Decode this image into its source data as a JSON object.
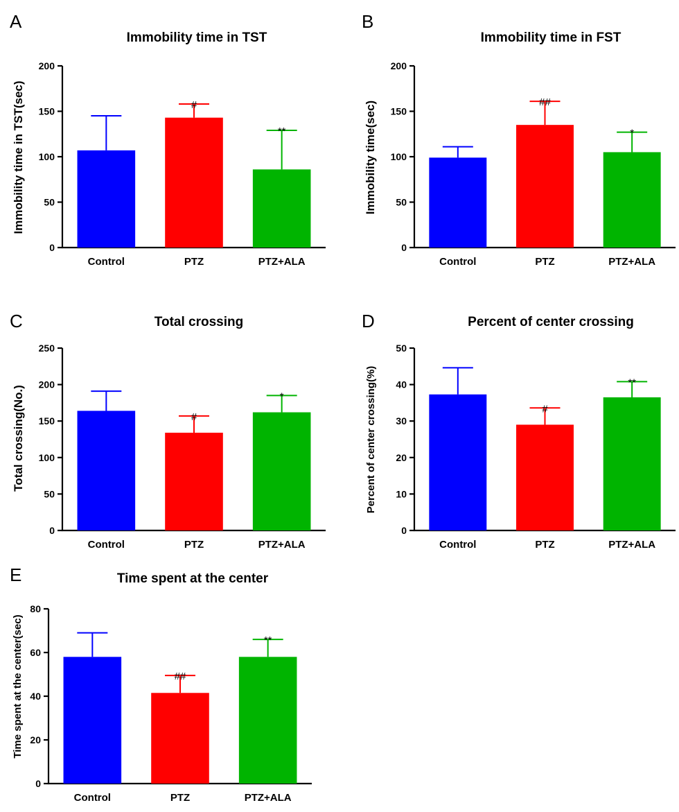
{
  "colors": {
    "Control": "#0000ff",
    "PTZ": "#ff0000",
    "PTZ+ALA": "#00b400"
  },
  "chart_data": [
    {
      "type": "bar",
      "panel": "A",
      "title": "Immobility time in TST",
      "xlabel": "",
      "ylabel": "Immobility time in TST(sec)",
      "ylim": [
        0,
        200
      ],
      "yticks": [
        0,
        50,
        100,
        150,
        200
      ],
      "categories": [
        "Control",
        "PTZ",
        "PTZ+ALA"
      ],
      "values": [
        107,
        143,
        86
      ],
      "errors": [
        38,
        15,
        43
      ],
      "annotations": [
        "",
        "#",
        "**"
      ],
      "grid": false,
      "legend": "none"
    },
    {
      "type": "bar",
      "panel": "B",
      "title": "Immobility time in FST",
      "xlabel": "",
      "ylabel": "Immobility time(sec)",
      "ylim": [
        0,
        200
      ],
      "yticks": [
        0,
        50,
        100,
        150,
        200
      ],
      "categories": [
        "Control",
        "PTZ",
        "PTZ+ALA"
      ],
      "values": [
        99,
        135,
        105
      ],
      "errors": [
        12,
        26,
        22
      ],
      "annotations": [
        "",
        "##",
        "*"
      ],
      "grid": false,
      "legend": "none"
    },
    {
      "type": "bar",
      "panel": "C",
      "title": "Total crossing",
      "xlabel": "",
      "ylabel": "Total crossing(No.)",
      "ylim": [
        0,
        250
      ],
      "yticks": [
        0,
        50,
        100,
        150,
        200,
        250
      ],
      "categories": [
        "Control",
        "PTZ",
        "PTZ+ALA"
      ],
      "values": [
        164,
        134,
        162
      ],
      "errors": [
        27,
        23,
        23
      ],
      "annotations": [
        "",
        "#",
        "*"
      ],
      "grid": false,
      "legend": "none"
    },
    {
      "type": "bar",
      "panel": "D",
      "title": "Percent of center crossing",
      "xlabel": "",
      "ylabel": "Percent of center crossing(%)",
      "ylim": [
        0,
        50
      ],
      "yticks": [
        0,
        10,
        20,
        30,
        40,
        50
      ],
      "categories": [
        "Control",
        "PTZ",
        "PTZ+ALA"
      ],
      "values": [
        37.3,
        29,
        36.5
      ],
      "errors": [
        7.3,
        4.6,
        4.3
      ],
      "annotations": [
        "",
        "#",
        "**"
      ],
      "grid": false,
      "legend": "none"
    },
    {
      "type": "bar",
      "panel": "E",
      "title": "Time spent at the center",
      "xlabel": "",
      "ylabel": "Time spent at the center(sec)",
      "ylim": [
        0,
        80
      ],
      "yticks": [
        0,
        20,
        40,
        60,
        80
      ],
      "categories": [
        "Control",
        "PTZ",
        "PTZ+ALA"
      ],
      "values": [
        58,
        41.5,
        58
      ],
      "errors": [
        11,
        8,
        8
      ],
      "annotations": [
        "",
        "##",
        "**"
      ],
      "grid": false,
      "legend": "none"
    }
  ]
}
